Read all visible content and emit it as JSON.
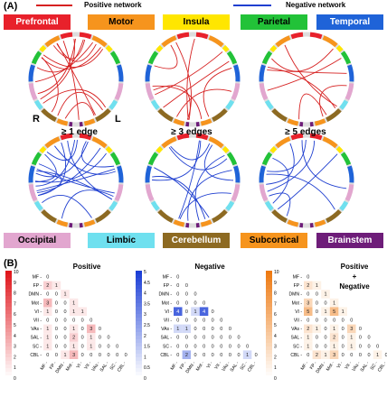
{
  "panel_a": {
    "label": "(A)",
    "legend": {
      "positive": {
        "text": "Positive network",
        "color": "#d62020"
      },
      "negative": {
        "text": "Negative network",
        "color": "#1f3fd0"
      }
    },
    "top_regions": [
      {
        "name": "Prefrontal",
        "bg": "#e8212b",
        "fg": "#ffffff"
      },
      {
        "name": "Motor",
        "bg": "#f6941d",
        "fg": "#000000"
      },
      {
        "name": "Insula",
        "bg": "#ffe600",
        "fg": "#000000"
      },
      {
        "name": "Parietal",
        "bg": "#22c238",
        "fg": "#000000"
      },
      {
        "name": "Temporal",
        "bg": "#1f63d8",
        "fg": "#ffffff"
      }
    ],
    "bottom_regions": [
      {
        "name": "Occipital",
        "bg": "#e2a6cf",
        "fg": "#000000"
      },
      {
        "name": "Limbic",
        "bg": "#6fe0ef",
        "fg": "#000000"
      },
      {
        "name": "Cerebellum",
        "bg": "#8d6a22",
        "fg": "#ffffff"
      },
      {
        "name": "Subcortical",
        "bg": "#f6941d",
        "fg": "#000000"
      },
      {
        "name": "Brainstem",
        "bg": "#6e1d79",
        "fg": "#ffffff"
      }
    ],
    "hemisphere_left": "R",
    "hemisphere_right": "L",
    "thresholds": [
      "≥ 1 edge",
      "≥ 3 edges",
      "≥ 5 edges"
    ],
    "ring_segment_colors": [
      "#e8212b",
      "#f6941d",
      "#ffe600",
      "#22c238",
      "#1f63d8",
      "#e2a6cf",
      "#6fe0ef",
      "#8d6a22",
      "#f6941d",
      "#6e1d79"
    ]
  },
  "panel_b": {
    "label": "(B)",
    "row_labels": [
      "MF",
      "FP",
      "DMN",
      "Mot",
      "VI",
      "VII",
      "VAs",
      "SAL",
      "SC",
      "CBL"
    ],
    "col_labels": [
      "MF",
      "FP",
      "DMN",
      "Mot",
      "VI",
      "VII",
      "VAs",
      "SAL",
      "SC",
      "CBL"
    ],
    "matrices": [
      {
        "title": "Positive",
        "scale_ticks": [
          "10",
          "9",
          "8",
          "7",
          "6",
          "5",
          "4",
          "3",
          "2",
          "1",
          "0"
        ],
        "color": "#e0161c",
        "max": 10,
        "values": [
          [
            0
          ],
          [
            2,
            1
          ],
          [
            0,
            0,
            1
          ],
          [
            3,
            0,
            0,
            1
          ],
          [
            1,
            0,
            0,
            1,
            1
          ],
          [
            0,
            0,
            0,
            0,
            0,
            0
          ],
          [
            1,
            0,
            0,
            1,
            0,
            3,
            0
          ],
          [
            1,
            0,
            0,
            2,
            0,
            1,
            0,
            0
          ],
          [
            1,
            0,
            0,
            1,
            0,
            1,
            0,
            0,
            0
          ],
          [
            0,
            0,
            1,
            3,
            0,
            0,
            0,
            0,
            0,
            0
          ]
        ]
      },
      {
        "title": "Negative",
        "scale_ticks": [
          "5",
          "4.5",
          "4",
          "3.5",
          "3",
          "2.5",
          "2",
          "1.5",
          "1",
          "0.5",
          "0"
        ],
        "color": "#1c3fd6",
        "max": 5,
        "values": [
          [
            0
          ],
          [
            0,
            0
          ],
          [
            0,
            0,
            0
          ],
          [
            0,
            0,
            0,
            0
          ],
          [
            4,
            0,
            1,
            4,
            0
          ],
          [
            0,
            0,
            0,
            0,
            0,
            0
          ],
          [
            1,
            1,
            0,
            0,
            0,
            0,
            0
          ],
          [
            0,
            0,
            0,
            0,
            0,
            0,
            0,
            0
          ],
          [
            0,
            0,
            0,
            0,
            0,
            0,
            0,
            0,
            0
          ],
          [
            0,
            2,
            0,
            0,
            0,
            0,
            0,
            0,
            1,
            0
          ]
        ]
      },
      {
        "title": "Positive",
        "title2": "+",
        "title3": "Negative",
        "scale_ticks": [
          "10",
          "9",
          "8",
          "7",
          "6",
          "5",
          "4",
          "3",
          "2",
          "1",
          "0"
        ],
        "color": "#ee7a12",
        "max": 10,
        "values": [
          [
            0
          ],
          [
            2,
            1
          ],
          [
            0,
            0,
            1
          ],
          [
            3,
            0,
            0,
            1
          ],
          [
            5,
            0,
            1,
            5,
            1
          ],
          [
            0,
            0,
            0,
            0,
            0,
            0
          ],
          [
            2,
            1,
            0,
            1,
            0,
            3,
            0
          ],
          [
            1,
            0,
            0,
            2,
            0,
            1,
            0,
            0
          ],
          [
            1,
            0,
            0,
            1,
            0,
            1,
            0,
            0,
            0
          ],
          [
            0,
            2,
            1,
            3,
            0,
            0,
            0,
            0,
            1,
            0
          ]
        ]
      }
    ]
  }
}
